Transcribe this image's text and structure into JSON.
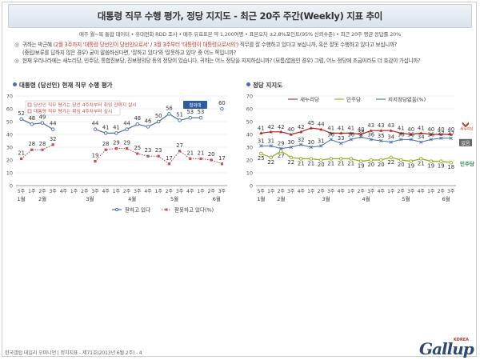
{
  "header": {
    "title": "대통령 직무 수행 평가, 정당 지지도 - 최근 20주 주간(Weekly) 지표 추이",
    "subtitle": "매주 월~목 통합 데이터 • 휴대전화 RDD 조사 • 매주 유효표본 약 1,200여명 • 표본오차 ±2.8%포인트(95% 신뢰수준) • 최근 20주 평균 응답률 20%"
  },
  "questions": [
    {
      "mark": "◎",
      "parts": [
        {
          "t": "귀하는 박근혜 ",
          "c": "plain"
        },
        {
          "t": "(2월 3주까지 '대통령 당선인이 당선인으로서'",
          "c": "red"
        },
        {
          "t": " / ",
          "c": "plain"
        },
        {
          "t": "3월 3주부터 '대통령이 대통령으로서의'",
          "c": "red"
        },
        {
          "t": ") 직무를 잘 수행하고 있다고 보십니까, 혹은 잘못 수행하고 있다고 보십니까?",
          "c": "plain"
        }
      ]
    },
    {
      "mark": "",
      "parts": [
        {
          "t": "(중립/보류를 답하지 않은 경우) 굳이 말씀하신다면, '잘하고 있다'와 '잘못하고 있다' 중 어느 쪽입니까?",
          "c": "plain"
        }
      ]
    },
    {
      "mark": "◎",
      "parts": [
        {
          "t": "현재 우리나라에는 새누리당, 민주당, 통합진보당, 진보정의당 등의 정당이 있습니다. 귀하는 어느 정당을 지지하십니까? (모름/없음인 경우) 그럼, 어느 정당에 조금이라도 더 호감이 가십니까?",
          "c": "plain"
        }
      ]
    }
  ],
  "left_chart": {
    "section_title": "대통령 (당선인) 현재 직무 수행 평가",
    "notes": [
      "당선인 직무 평가는 당선 4주차부터 취임 전까지 실시",
      "대통령 직무 평가는 취임 4주차부터 실시"
    ],
    "badge_label": "청와대",
    "legend": [
      {
        "name": "잘하고 있다",
        "color": "#4a6fa5",
        "style": "solid"
      },
      {
        "name": "잘못하고 있다(%)",
        "color": "#c0504d",
        "style": "dotted"
      }
    ]
  },
  "right_chart": {
    "section_title": "정당 지지도",
    "legend": [
      {
        "name": "새누리당",
        "color": "#b22222"
      },
      {
        "name": "민주당",
        "color": "#9aaa1e"
      },
      {
        "name": "지지정당없음(%)",
        "color": "#4a6fa5"
      }
    ],
    "party_tag_saenuri": "새누리당",
    "party_tag_none": "없음",
    "party_tag_minju": "민주당"
  },
  "footer": {
    "text": "한국갤럽 데일리 오피니언 | 정치지표 - 제71호(2013년 6월 2주) - 4",
    "logo": "Gallup",
    "logo_korea": "KOREA"
  },
  "chart_data": [
    {
      "type": "line",
      "title": "대통령 (당선인) 현재 직무 수행 평가",
      "x": [
        "1월 5주",
        "2월 1주",
        "2월 2주",
        "2월 3주",
        "2월 4주",
        "3월 1주",
        "3월 2주",
        "3월 3주",
        "3월 4주",
        "4월 1주",
        "4월 2주",
        "4월 3주",
        "4월 4주",
        "5월 1주",
        "5월 2주",
        "5월 3주",
        "5월 4주",
        "6월 1주",
        "6월 2주",
        "6월 3주"
      ],
      "x_tick_labels": [
        "5주",
        "1주",
        "2주",
        "3주",
        "4주",
        "1주",
        "2주",
        "3주",
        "4주",
        "1주",
        "2주",
        "3주",
        "4주",
        "1주",
        "2주",
        "3주",
        "4주",
        "1주",
        "2주",
        "3주"
      ],
      "month_labels": [
        {
          "label": "1월",
          "at": 0
        },
        {
          "label": "2월",
          "at": 2
        },
        {
          "label": "3월",
          "at": 6.5
        },
        {
          "label": "4월",
          "at": 10.5
        },
        {
          "label": "5월",
          "at": 14.5
        },
        {
          "label": "6월",
          "at": 18.5
        }
      ],
      "ylim": [
        0,
        70
      ],
      "yticks": [
        0,
        10,
        20,
        30,
        40,
        50,
        60,
        70
      ],
      "grid": true,
      "series": [
        {
          "name": "잘하고 있다",
          "values": [
            52,
            48,
            49,
            44,
            null,
            null,
            null,
            44,
            41,
            41,
            44,
            48,
            46,
            50,
            56,
            51,
            53,
            53,
            null,
            60
          ]
        },
        {
          "name": "잘못하고 있다(%)",
          "values": [
            21,
            28,
            28,
            32,
            null,
            null,
            null,
            19,
            28,
            29,
            29,
            25,
            23,
            23,
            17,
            27,
            21,
            21,
            20,
            17
          ]
        }
      ]
    },
    {
      "type": "line",
      "title": "정당 지지도",
      "x": [
        "1월 5주",
        "2월 1주",
        "2월 2주",
        "2월 3주",
        "2월 4주",
        "3월 1주",
        "3월 2주",
        "3월 3주",
        "3월 4주",
        "4월 1주",
        "4월 2주",
        "4월 3주",
        "4월 4주",
        "5월 1주",
        "5월 2주",
        "5월 3주",
        "5월 4주",
        "6월 1주",
        "6월 2주",
        "6월 3주"
      ],
      "x_tick_labels": [
        "5주",
        "1주",
        "2주",
        "3주",
        "4주",
        "1주",
        "2주",
        "3주",
        "4주",
        "1주",
        "2주",
        "3주",
        "4주",
        "1주",
        "2주",
        "3주",
        "4주",
        "1주",
        "2주",
        "3주"
      ],
      "month_labels": [
        {
          "label": "1월",
          "at": 0
        },
        {
          "label": "2월",
          "at": 2
        },
        {
          "label": "3월",
          "at": 6.5
        },
        {
          "label": "4월",
          "at": 10.5
        },
        {
          "label": "5월",
          "at": 14.5
        },
        {
          "label": "6월",
          "at": 18.5
        }
      ],
      "ylim": [
        0,
        70
      ],
      "yticks": [
        0,
        10,
        20,
        30,
        40,
        50,
        60,
        70
      ],
      "grid": true,
      "series": [
        {
          "name": "새누리당",
          "values": [
            41,
            42,
            42,
            40,
            42,
            45,
            44,
            41,
            41,
            41,
            40,
            43,
            43,
            43,
            41,
            40,
            41,
            40,
            40,
            40
          ]
        },
        {
          "name": "민주당",
          "values": [
            25,
            22,
            27,
            22,
            21,
            21,
            20,
            21,
            21,
            21,
            19,
            20,
            20,
            22,
            20,
            19,
            21,
            19,
            19,
            18
          ]
        },
        {
          "name": "지지정당없음(%)",
          "values": [
            31,
            31,
            29,
            30,
            32,
            30,
            31,
            36,
            33,
            36,
            38,
            36,
            35,
            34,
            36,
            36,
            34,
            36,
            37,
            37
          ]
        }
      ]
    }
  ]
}
